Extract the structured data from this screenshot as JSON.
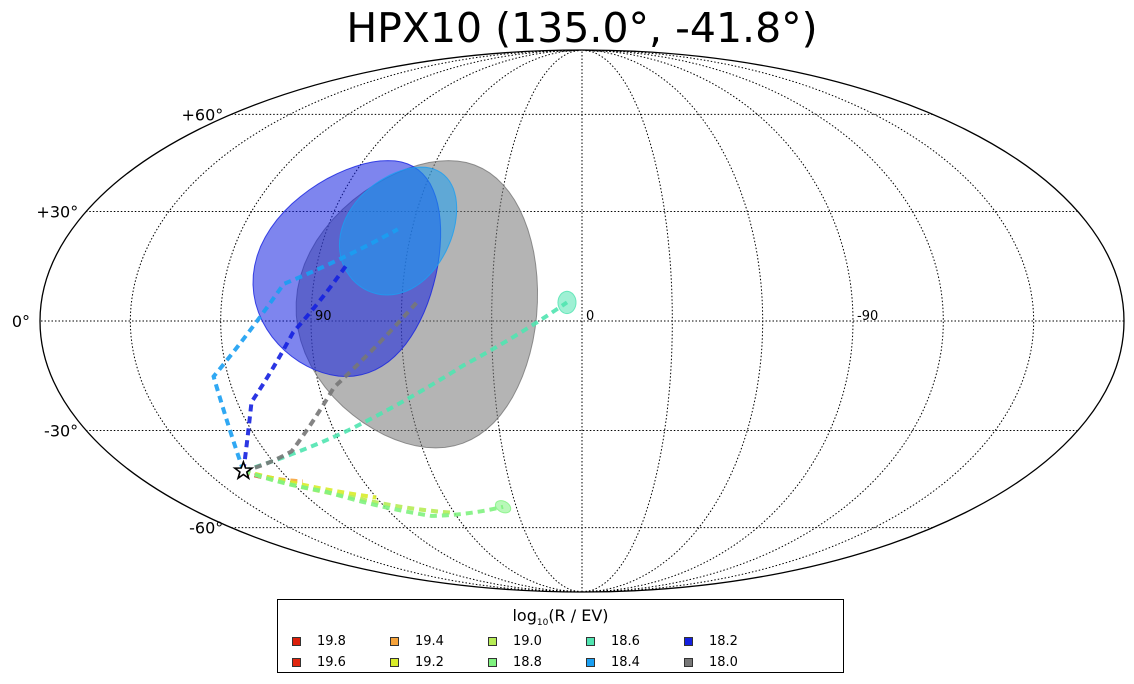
{
  "chart_data": {
    "type": "scatter",
    "projection": "mollweide",
    "title": "HPX10 (135.0°, -41.8°)",
    "grid": true,
    "lat_ticks": [
      {
        "lat": 60,
        "label": "+60°"
      },
      {
        "lat": 30,
        "label": "+30°"
      },
      {
        "lat": 0,
        "label": "0°"
      },
      {
        "lat": -30,
        "label": "-30°"
      },
      {
        "lat": -60,
        "label": "-60°"
      }
    ],
    "lon_ticks": [
      {
        "lon": 90,
        "label": "90"
      },
      {
        "lon": 0,
        "label": "0"
      },
      {
        "lon": -90,
        "label": "-90"
      }
    ],
    "source": {
      "lon": 135.0,
      "lat": -41.8,
      "marker": "star"
    },
    "legend": {
      "title": "log",
      "title_sub": "10",
      "title_rest": "(R / EV)",
      "placement": "bottom-center",
      "columns": 6,
      "entries": [
        {
          "label": "19.8",
          "color": "#dc1f0a"
        },
        {
          "label": "19.6",
          "color": "#e0260f"
        },
        {
          "label": "19.4",
          "color": "#f6a33a"
        },
        {
          "label": "19.2",
          "color": "#d8ec2a"
        },
        {
          "label": "19.0",
          "color": "#b6ec55"
        },
        {
          "label": "18.8",
          "color": "#7ff27f"
        },
        {
          "label": "18.6",
          "color": "#50e4b0"
        },
        {
          "label": "18.4",
          "color": "#1a9ff2"
        },
        {
          "label": "18.2",
          "color": "#1420e0"
        },
        {
          "label": "18.0",
          "color": "#777777"
        }
      ]
    },
    "series": [
      {
        "name": "18.0",
        "color": "#777777",
        "arrival": {
          "lon": 55,
          "lat": 5
        },
        "spread_deg": 40,
        "track": [
          [
            135.0,
            -41.8
          ],
          [
            110,
            -36
          ],
          [
            85,
            -18
          ],
          [
            55,
            5
          ]
        ]
      },
      {
        "name": "18.2",
        "color": "#1420e0",
        "arrival": {
          "lon": 80,
          "lat": 15
        },
        "spread_deg": 30,
        "track": [
          [
            135.0,
            -41.8
          ],
          [
            115,
            -22
          ],
          [
            96,
            -3
          ],
          [
            80,
            15
          ]
        ]
      },
      {
        "name": "18.4",
        "color": "#1a9ff2",
        "arrival": {
          "lon": 65,
          "lat": 25
        },
        "spread_deg": 18,
        "track": [
          [
            135.0,
            -41.8
          ],
          [
            125,
            -15
          ],
          [
            100,
            10
          ],
          [
            65,
            25
          ]
        ]
      },
      {
        "name": "18.6",
        "color": "#50e4b0",
        "arrival": {
          "lon": 5,
          "lat": 5
        },
        "spread_deg": 3,
        "track": [
          [
            135.0,
            -41.8
          ],
          [
            85,
            -30
          ],
          [
            40,
            -12
          ],
          [
            5,
            5
          ]
        ]
      },
      {
        "name": "18.8",
        "color": "#7ff27f",
        "arrival": {
          "lon": 36,
          "lat": -53
        },
        "spread_deg": 2,
        "track": [
          [
            135.0,
            -41.8
          ],
          [
            110,
            -48
          ],
          [
            72,
            -56
          ],
          [
            36,
            -53
          ]
        ]
      },
      {
        "name": "19.0",
        "color": "#b6ec55",
        "arrival": {
          "lon": 60,
          "lat": -55
        },
        "track": [
          [
            135.0,
            -41.8
          ],
          [
            100,
            -50
          ],
          [
            60,
            -55
          ]
        ]
      },
      {
        "name": "19.2",
        "color": "#d8ec2a",
        "arrival": {
          "lon": 90,
          "lat": -50
        },
        "track": [
          [
            135.0,
            -41.8
          ],
          [
            90,
            -50
          ]
        ]
      },
      {
        "name": "19.4",
        "color": "#f6a33a",
        "arrival": {
          "lon": 115,
          "lat": -45
        },
        "track": [
          [
            135.0,
            -41.8
          ],
          [
            115,
            -45
          ]
        ]
      },
      {
        "name": "19.6",
        "color": "#e0260f",
        "arrival": {
          "lon": 125,
          "lat": -44
        },
        "track": [
          [
            135.0,
            -41.8
          ],
          [
            125,
            -44
          ]
        ]
      },
      {
        "name": "19.8",
        "color": "#dc1f0a",
        "arrival": {
          "lon": 130,
          "lat": -43
        },
        "track": [
          [
            135.0,
            -41.8
          ],
          [
            130,
            -43
          ]
        ]
      }
    ]
  }
}
